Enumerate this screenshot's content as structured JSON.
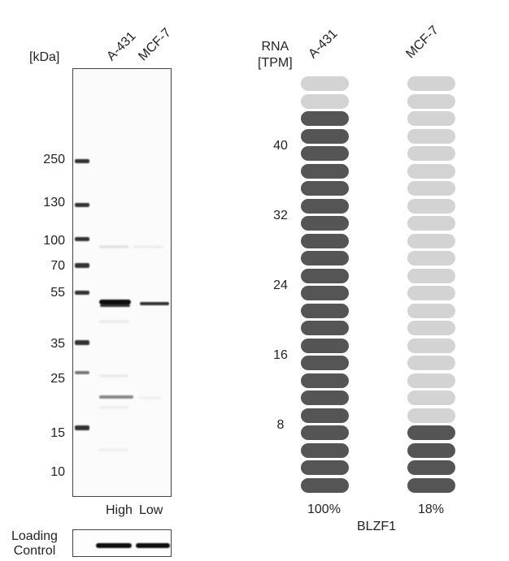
{
  "western_blot": {
    "unit_label": "[kDa]",
    "lanes": [
      "A-431",
      "MCF-7"
    ],
    "mw_markers": [
      "250",
      "130",
      "100",
      "70",
      "55",
      "35",
      "25",
      "15",
      "10"
    ],
    "conditions": [
      "High",
      "Low"
    ],
    "loading_control_label": [
      "Loading",
      "Control"
    ]
  },
  "rna": {
    "header": [
      "RNA",
      "[TPM]"
    ],
    "cell_lines": [
      "A-431",
      "MCF-7"
    ],
    "y_ticks": [
      "40",
      "32",
      "24",
      "16",
      "8"
    ],
    "percentages": [
      "100%",
      "18%"
    ],
    "gene": "BLZF1",
    "colors": {
      "high": "#555555",
      "low": "#d3d3d3"
    }
  },
  "chart_data": {
    "type": "bar",
    "categories": [
      "A-431",
      "MCF-7"
    ],
    "values": [
      100,
      18
    ],
    "total_segments": 24,
    "filled_segments": [
      22,
      4
    ],
    "y_ticks": [
      8,
      16,
      24,
      32,
      40
    ],
    "ylabel": "RNA [TPM]",
    "xlabel": "BLZF1"
  }
}
